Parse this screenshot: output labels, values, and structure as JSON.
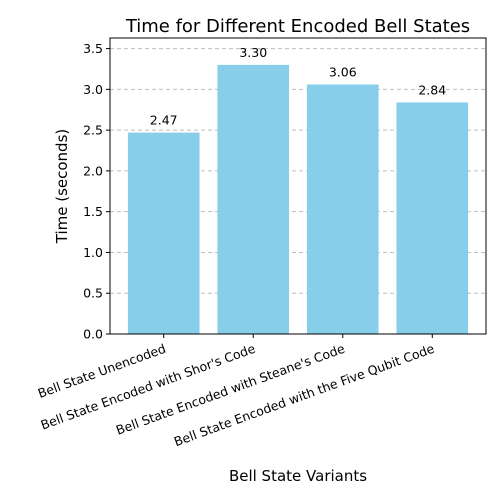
{
  "chart_data": {
    "type": "bar",
    "title": "Time for Different Encoded Bell States",
    "xlabel": "Bell State Variants",
    "ylabel": "Time (seconds)",
    "categories": [
      "Bell State Unencoded",
      "Bell State Encoded with Shor's Code",
      "Bell State Encoded with Steane's Code",
      "Bell State Encoded with the Five Qubit Code"
    ],
    "values": [
      2.47,
      3.3,
      3.06,
      2.84
    ],
    "data_labels": [
      "2.47",
      "3.30",
      "3.06",
      "2.84"
    ],
    "ylim": [
      0,
      3.63
    ],
    "yticks": [
      0.0,
      0.5,
      1.0,
      1.5,
      2.0,
      2.5,
      3.0,
      3.5
    ],
    "ytick_labels": [
      "0.0",
      "0.5",
      "1.0",
      "1.5",
      "2.0",
      "2.5",
      "3.0",
      "3.5"
    ],
    "grid": "y-dashed",
    "bar_color": "#87ceeb",
    "legend": "none"
  }
}
